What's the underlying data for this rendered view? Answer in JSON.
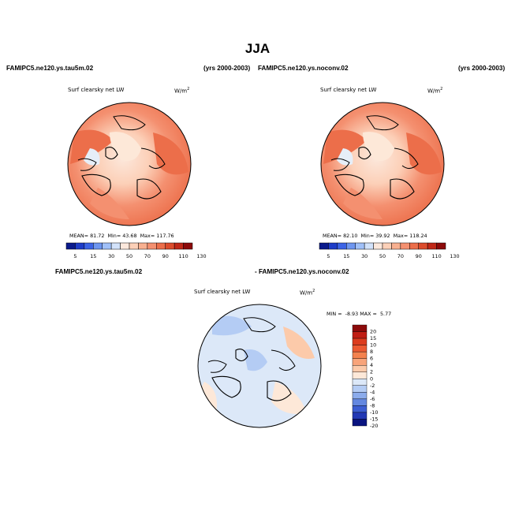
{
  "title": "JJA",
  "panels": [
    {
      "case_left": "FAMIPC5.ne120.ys.tau5m.02",
      "years": "(yrs 2000-2003)",
      "variable": "Surf clearsky net LW",
      "units": "W/m",
      "units_sup": "2",
      "mean_label": "MEAN=",
      "mean": "81.72",
      "min_label": "Min=",
      "min": "43.68",
      "max_label": "Max=",
      "max": "117.76"
    },
    {
      "case_left": "FAMIPC5.ne120.ys.noconv.02",
      "years": "(yrs 2000-2003)",
      "variable": "Surf clearsky net LW",
      "units": "W/m",
      "units_sup": "2",
      "mean_label": "MEAN=",
      "mean": "82.10",
      "min_label": "Min=",
      "min": "39.92",
      "max_label": "Max=",
      "max": "118.24"
    }
  ],
  "diff_panel": {
    "case_a": "FAMIPC5.ne120.ys.tau5m.02",
    "case_b": "- FAMIPC5.ne120.ys.noconv.02",
    "variable": "Surf clearsky net LW",
    "units": "W/m",
    "units_sup": "2",
    "min_label": "MIN =",
    "min": "-8.93",
    "max_label": "MAX =",
    "max": "5.77"
  },
  "colorbar_main": {
    "colors": [
      "#0a1a8c",
      "#1e3cc8",
      "#3c64e6",
      "#6e96f0",
      "#a0c0f8",
      "#d2e2fa",
      "#fce8dc",
      "#fcd0b8",
      "#f8b090",
      "#f49070",
      "#ec6e4a",
      "#dc4c2c",
      "#c02818",
      "#8c0a0a"
    ],
    "labels": [
      "5",
      "15",
      "30",
      "50",
      "70",
      "90",
      "110",
      "130"
    ]
  },
  "colorbar_diff": {
    "colors": [
      "#8c0a0a",
      "#c01e14",
      "#dc3c1e",
      "#ec5a32",
      "#f4824e",
      "#f8a47a",
      "#fccaaa",
      "#fde8d8",
      "#dce8f8",
      "#b4ccf4",
      "#8cacec",
      "#6488e0",
      "#3c5ed2",
      "#2238b4",
      "#0a1480"
    ],
    "labels": [
      "20",
      "15",
      "10",
      "8",
      "6",
      "4",
      "2",
      "0",
      "-2",
      "-4",
      "-6",
      "-8",
      "-10",
      "-15",
      "-20"
    ]
  }
}
